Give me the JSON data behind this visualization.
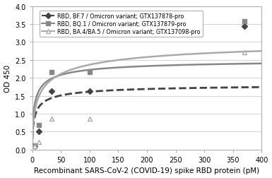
{
  "title": "",
  "xlabel": "Recombinant SARS-CoV-2 (COVID-19) spike RBD protein (pM)",
  "ylabel": "OD 450",
  "xlim": [
    0,
    400
  ],
  "ylim": [
    0,
    4
  ],
  "yticks": [
    0,
    0.5,
    1,
    1.5,
    2,
    2.5,
    3,
    3.5,
    4
  ],
  "xticks": [
    0,
    50,
    100,
    150,
    200,
    250,
    300,
    350,
    400
  ],
  "series": [
    {
      "label": "RBD, BF.7 / Omicron variant; GTX137878-pro",
      "marker": "D",
      "color": "#444444",
      "linestyle": "--",
      "data_x": [
        0.41,
        1.23,
        3.7,
        11.1,
        33.3,
        100,
        370
      ],
      "data_y": [
        0.04,
        0.06,
        0.09,
        0.5,
        1.63,
        1.63,
        3.44
      ],
      "Vmax": 1.85,
      "Km": 4.5,
      "n": 0.62
    },
    {
      "label": "RBD, BQ.1 / Omicron variant; GTX137879-pro",
      "marker": "s",
      "color": "#888888",
      "linestyle": "-",
      "data_x": [
        0.41,
        1.23,
        3.7,
        11.1,
        33.3,
        100,
        370
      ],
      "data_y": [
        0.04,
        0.07,
        0.12,
        0.68,
        2.16,
        2.16,
        3.57
      ],
      "Vmax": 2.55,
      "Km": 4.5,
      "n": 0.62
    },
    {
      "label": "RBD, BA.4/BA.5 / Omicron variant; GTX137098-pro",
      "marker": "^",
      "color": "#aaaaaa",
      "linestyle": "-",
      "data_x": [
        0.41,
        1.23,
        3.7,
        11.1,
        33.3,
        100,
        370
      ],
      "data_y": [
        0.03,
        0.05,
        0.09,
        0.22,
        0.86,
        0.86,
        2.72
      ],
      "Vmax": 3.2,
      "Km": 15.0,
      "n": 0.55
    }
  ],
  "background_color": "#ffffff",
  "grid_color": "#cccccc",
  "legend_fontsize": 5.8,
  "axis_fontsize": 7.5,
  "tick_fontsize": 7
}
